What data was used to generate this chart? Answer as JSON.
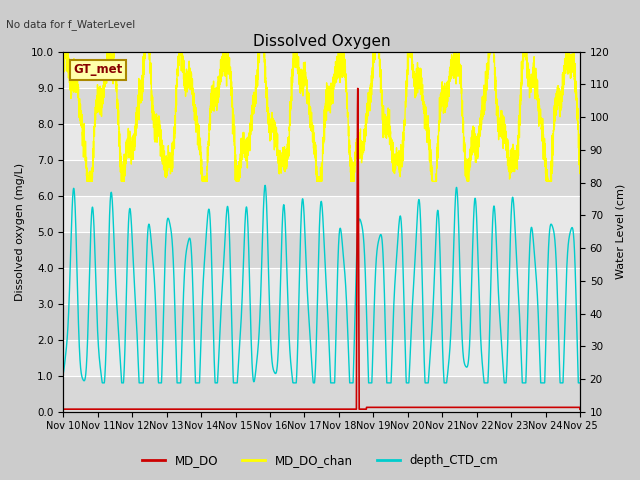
{
  "title": "Dissolved Oxygen",
  "top_left_text": "No data for f_WaterLevel",
  "annotation_box": "GT_met",
  "ylabel_left": "Dissolved oxygen (mg/L)",
  "ylabel_right": "Water Level (cm)",
  "ylim_left": [
    0.0,
    10.0
  ],
  "ylim_right": [
    10,
    120
  ],
  "xtick_labels": [
    "Nov 10",
    "Nov 11",
    "Nov 12",
    "Nov 13",
    "Nov 14",
    "Nov 15",
    "Nov 16",
    "Nov 17",
    "Nov 18",
    "Nov 19",
    "Nov 20",
    "Nov 21",
    "Nov 22",
    "Nov 23",
    "Nov 24",
    "Nov 25"
  ],
  "fig_bg_color": "#d4d4d4",
  "plot_bg_color": "#e8e8e8",
  "stripe_colors": [
    "#e0e0e0",
    "#d0d0d0"
  ],
  "legend_entries": [
    "MD_DO",
    "MD_DO_chan",
    "depth_CTD_cm"
  ],
  "line_colors": {
    "MD_DO": "#cc0000",
    "MD_DO_chan": "#ffff00",
    "depth_CTD_cm": "#00cccc"
  },
  "ytick_labels_left": [
    "0.0",
    "1.0",
    "2.0",
    "3.0",
    "4.0",
    "5.0",
    "6.0",
    "7.0",
    "8.0",
    "9.0",
    "10.0"
  ],
  "ytick_labels_right": [
    "10",
    "20",
    "30",
    "40",
    "50",
    "60",
    "70",
    "80",
    "90",
    "100",
    "110",
    "120"
  ]
}
